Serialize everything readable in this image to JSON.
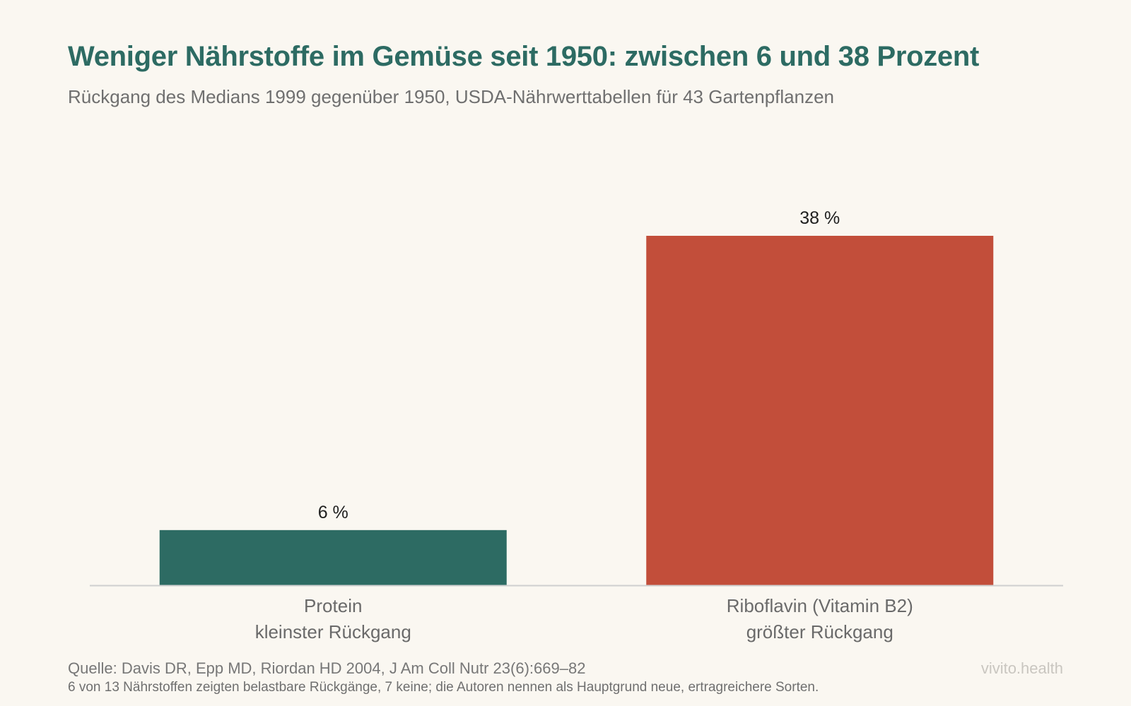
{
  "header": {
    "title": "Weniger Nährstoffe im Gemüse seit 1950: zwischen 6 und 38 Prozent",
    "subtitle": "Rückgang des Medians 1999 gegenüber 1950, USDA-Nährwerttabellen für 43 Gartenpflanzen"
  },
  "chart_data": {
    "type": "bar",
    "title": "Weniger Nährstoffe im Gemüse seit 1950: zwischen 6 und 38 Prozent",
    "subtitle": "Rückgang des Medians 1999 gegenüber 1950, USDA-Nährwerttabellen für 43 Gartenpflanzen",
    "categories": [
      [
        "Protein",
        "kleinster Rückgang"
      ],
      [
        "Riboflavin (Vitamin B2)",
        "größter Rückgang"
      ]
    ],
    "values": [
      6,
      38
    ],
    "value_labels": [
      "6 %",
      "38 %"
    ],
    "colors": [
      "#2d6b63",
      "#c24e3a"
    ],
    "xlabel": "",
    "ylabel": "",
    "ylim": [
      0,
      38
    ],
    "grid": false,
    "legend": "none"
  },
  "footer": {
    "source": "Quelle: Davis DR, Epp MD, Riordan HD 2004, J Am Coll Nutr 23(6):669–82",
    "note": "6 von 13 Nährstoffen zeigten belastbare Rückgänge, 7 keine; die Autoren nennen als Hauptgrund neue, ertragreichere Sorten.",
    "brand": "vivito.health"
  },
  "colors": {
    "accent": "#2d6b63",
    "highlight": "#c24e3a",
    "background": "#faf7f1",
    "baseline": "#cfcfcf"
  }
}
